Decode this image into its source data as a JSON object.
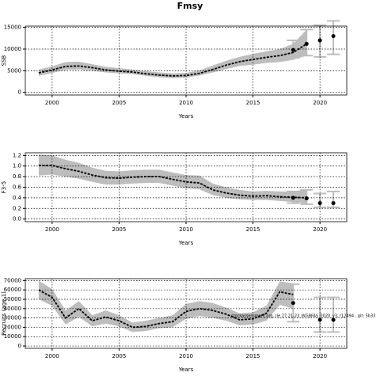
{
  "chart_data": [
    {
      "type": "line",
      "title": "Fmsy",
      "ylabel": "SSB",
      "xlabel": "Years",
      "xlim": [
        1998,
        2022
      ],
      "xticks": [
        2000,
        2005,
        2010,
        2015,
        2020
      ],
      "ylim": [
        -600,
        15300
      ],
      "yticks": [
        0,
        5000,
        10000,
        15000
      ],
      "grid": true,
      "x": [
        1999,
        2000,
        2001,
        2002,
        2003,
        2004,
        2005,
        2006,
        2007,
        2008,
        2009,
        2010,
        2011,
        2012,
        2013,
        2014,
        2015,
        2016,
        2017,
        2018,
        2019
      ],
      "series": [
        {
          "color": "#000000",
          "band_color": "#bdbdbd",
          "values": [
            4500,
            5200,
            6000,
            6100,
            5700,
            5200,
            4900,
            4700,
            4300,
            4000,
            3800,
            3900,
            4400,
            5300,
            6300,
            7100,
            7600,
            8100,
            8500,
            9200,
            11200
          ],
          "low": [
            3800,
            4500,
            5200,
            5300,
            5000,
            4600,
            4400,
            4200,
            3800,
            3500,
            3300,
            3400,
            3900,
            4600,
            5400,
            6100,
            6400,
            6800,
            7000,
            7500,
            8500
          ],
          "high": [
            5300,
            6000,
            7000,
            7100,
            6500,
            5900,
            5600,
            5300,
            4900,
            4600,
            4400,
            4500,
            5100,
            6200,
            7300,
            8200,
            8900,
            9500,
            10000,
            11200,
            14500
          ]
        }
      ],
      "forecast": {
        "color": "#000000",
        "bar_color": "#bdbdbd",
        "x": [
          2018,
          2019,
          2020,
          2021
        ],
        "values": [
          9800,
          11200,
          12000,
          13000
        ],
        "low": [
          8000,
          8500,
          8200,
          8800
        ],
        "high": [
          12000,
          14500,
          15500,
          16500
        ]
      }
    },
    {
      "type": "line",
      "ylabel": "F3-5",
      "xlabel": "Years",
      "xlim": [
        1998,
        2022
      ],
      "xticks": [
        2000,
        2005,
        2010,
        2015,
        2020
      ],
      "ylim": [
        -0.05,
        1.25
      ],
      "yticks": [
        {
          "value": 0,
          "label": "0.0"
        },
        0.2,
        0.4,
        0.6,
        0.8,
        {
          "value": 1,
          "label": "1.0"
        },
        1.2
      ],
      "grid": true,
      "x": [
        1999,
        2000,
        2001,
        2002,
        2003,
        2004,
        2005,
        2006,
        2007,
        2008,
        2009,
        2010,
        2011,
        2012,
        2013,
        2014,
        2015,
        2016,
        2017,
        2018,
        2019
      ],
      "series": [
        {
          "color": "#000000",
          "band_color": "#bdbdbd",
          "values": [
            1.01,
            1.01,
            0.95,
            0.9,
            0.83,
            0.78,
            0.77,
            0.79,
            0.8,
            0.8,
            0.75,
            0.7,
            0.68,
            0.55,
            0.49,
            0.45,
            0.43,
            0.44,
            0.42,
            0.41,
            0.4
          ],
          "low": [
            0.82,
            0.84,
            0.8,
            0.76,
            0.7,
            0.65,
            0.65,
            0.67,
            0.68,
            0.68,
            0.63,
            0.58,
            0.56,
            0.45,
            0.4,
            0.37,
            0.36,
            0.36,
            0.34,
            0.32,
            0.29
          ],
          "high": [
            1.22,
            1.2,
            1.12,
            1.06,
            0.97,
            0.91,
            0.9,
            0.92,
            0.93,
            0.93,
            0.88,
            0.83,
            0.82,
            0.67,
            0.6,
            0.55,
            0.52,
            0.53,
            0.52,
            0.52,
            0.56
          ]
        }
      ],
      "forecast": {
        "color": "#000000",
        "bar_color": "#bdbdbd",
        "x": [
          2018,
          2019,
          2020,
          2021
        ],
        "values": [
          0.4,
          0.39,
          0.3,
          0.3
        ],
        "low": [
          0.3,
          0.28,
          0.22,
          0.22
        ],
        "high": [
          0.52,
          0.55,
          0.48,
          0.52
        ]
      }
    },
    {
      "type": "line",
      "ylabel": "Recruits (age 1)",
      "xlabel": "Years",
      "xlim": [
        1998,
        2022
      ],
      "xticks": [
        2000,
        2005,
        2010,
        2015,
        2020
      ],
      "ylim": [
        -2500,
        72000
      ],
      "yticks": [
        0,
        10000,
        20000,
        30000,
        40000,
        50000,
        60000,
        70000
      ],
      "grid": true,
      "annotation": "stockassessment.org, (le 27.21-23_WGBFAS_2020_v3, r12494 , git: 5b33",
      "x": [
        1999,
        2000,
        2001,
        2002,
        2003,
        2004,
        2005,
        2006,
        2007,
        2008,
        2009,
        2010,
        2011,
        2012,
        2013,
        2014,
        2015,
        2016,
        2017,
        2018
      ],
      "series": [
        {
          "color": "#000000",
          "band_color": "#bdbdbd",
          "values": [
            60000,
            52000,
            30000,
            40000,
            27000,
            31000,
            27000,
            20000,
            21000,
            24000,
            26000,
            37000,
            40000,
            38000,
            34000,
            28000,
            29000,
            35000,
            58000,
            55000
          ],
          "low": [
            50000,
            43000,
            23000,
            31000,
            21000,
            24000,
            21000,
            15000,
            16000,
            19000,
            20000,
            29000,
            32000,
            30000,
            27000,
            22000,
            23000,
            27000,
            44000,
            40000
          ],
          "high": [
            70000,
            61000,
            38000,
            48000,
            33000,
            38000,
            33000,
            25000,
            27000,
            30000,
            33000,
            45000,
            48000,
            46000,
            41000,
            35000,
            36000,
            43000,
            69000,
            67000
          ]
        }
      ],
      "forecast": {
        "color": "#000000",
        "bar_color": "#bdbdbd",
        "x": [
          2018,
          2020,
          2021
        ],
        "values": [
          46000,
          28000,
          28000
        ],
        "low": [
          26000,
          15000,
          15000
        ],
        "high": [
          66000,
          52000,
          52000
        ]
      }
    }
  ]
}
